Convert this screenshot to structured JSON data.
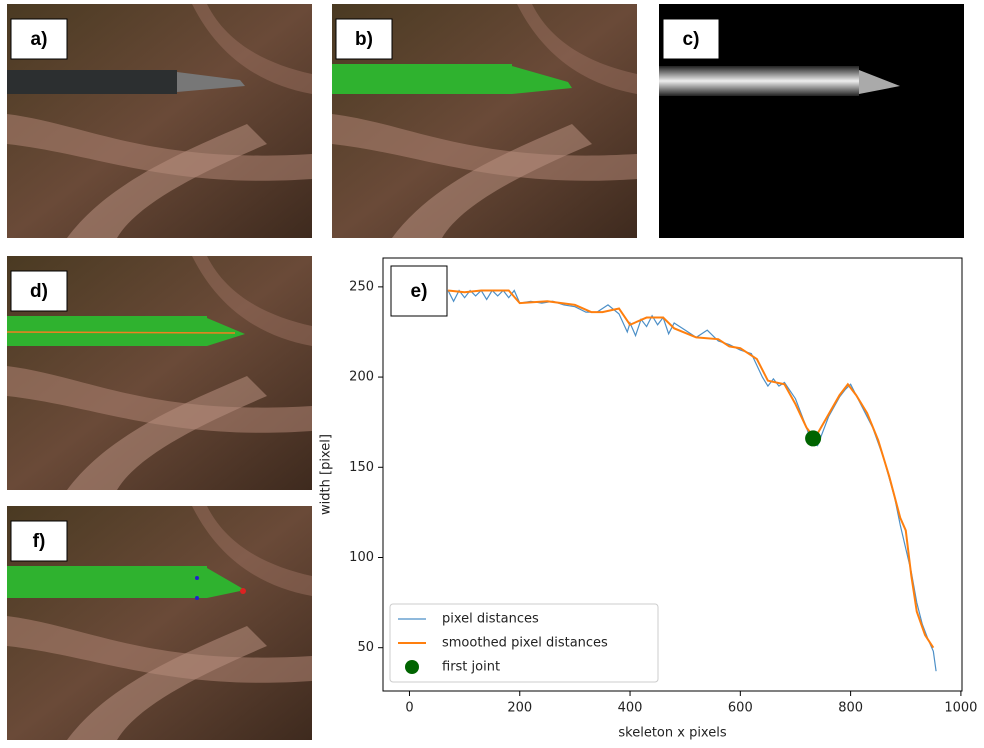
{
  "panels": [
    "a)",
    "b)",
    "c)",
    "d)",
    "f)"
  ],
  "chart_data": {
    "type": "line",
    "annotation": "e)",
    "xlabel": "skeleton x pixels",
    "ylabel": "width [pixel]",
    "xlim": [
      -48,
      1002
    ],
    "ylim": [
      26,
      266
    ],
    "xticks": [
      0,
      200,
      400,
      600,
      800,
      1000
    ],
    "yticks": [
      50,
      100,
      150,
      200,
      250
    ],
    "legend": "lower left",
    "series": [
      {
        "name": "pixel distances",
        "color": "#4c8fc7",
        "style": "line",
        "x": [
          70,
          80,
          90,
          100,
          110,
          120,
          130,
          140,
          150,
          160,
          170,
          180,
          190,
          200,
          220,
          240,
          260,
          280,
          300,
          320,
          340,
          360,
          380,
          395,
          400,
          410,
          420,
          430,
          440,
          450,
          460,
          470,
          480,
          500,
          520,
          540,
          560,
          580,
          600,
          620,
          640,
          650,
          660,
          670,
          680,
          700,
          710,
          720,
          730,
          740,
          750,
          760,
          780,
          790,
          800,
          810,
          820,
          840,
          860,
          880,
          890,
          900,
          910,
          920,
          930,
          940,
          950,
          955
        ],
        "values": [
          248,
          242,
          248,
          244,
          248,
          245,
          248,
          243,
          248,
          245,
          248,
          244,
          248,
          241,
          242,
          241,
          242,
          240,
          239,
          236,
          236,
          240,
          235,
          225,
          230,
          223,
          232,
          228,
          234,
          229,
          233,
          224,
          230,
          226,
          222,
          226,
          220,
          218,
          215,
          213,
          200,
          195,
          199,
          195,
          197,
          188,
          180,
          172,
          163,
          162,
          170,
          178,
          189,
          193,
          196,
          190,
          184,
          172,
          155,
          133,
          118,
          105,
          92,
          75,
          63,
          55,
          48,
          37
        ]
      },
      {
        "name": "smoothed pixel distances",
        "color": "#ff7f0e",
        "style": "line",
        "x": [
          70,
          100,
          130,
          180,
          200,
          250,
          300,
          330,
          350,
          380,
          400,
          430,
          460,
          480,
          520,
          560,
          580,
          600,
          630,
          650,
          680,
          700,
          720,
          735,
          750,
          780,
          795,
          810,
          830,
          850,
          870,
          890,
          900,
          910,
          920,
          935,
          950
        ],
        "values": [
          248,
          247,
          248,
          248,
          241,
          242,
          240,
          236,
          236,
          238,
          229,
          233,
          233,
          227,
          222,
          221,
          217,
          216,
          210,
          198,
          196,
          185,
          172,
          166,
          174,
          190,
          196,
          190,
          180,
          165,
          145,
          122,
          115,
          90,
          70,
          57,
          50
        ]
      },
      {
        "name": "first joint",
        "color": "#006400",
        "style": "marker",
        "x": [
          732
        ],
        "values": [
          166
        ]
      }
    ]
  }
}
